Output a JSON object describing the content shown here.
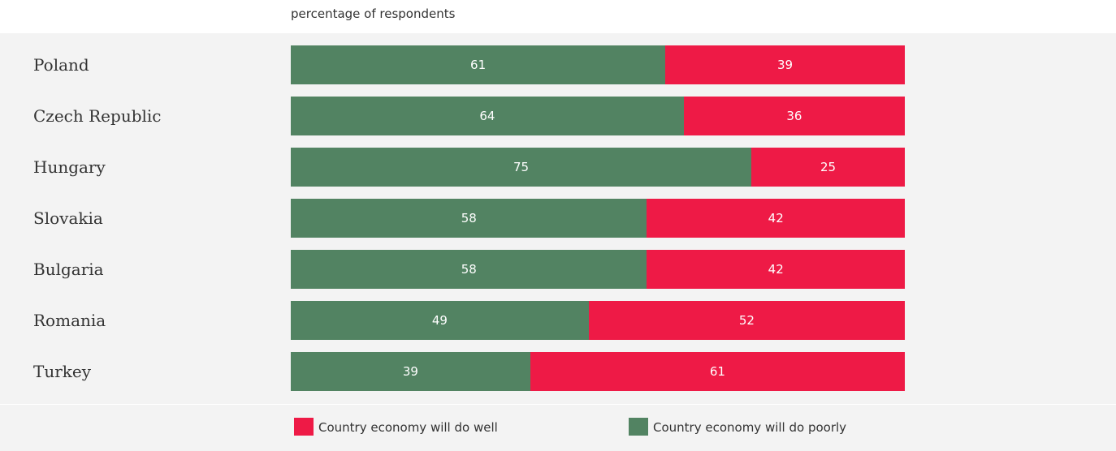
{
  "subtitle": "percentage of respondents",
  "colors": {
    "poorly": "#528362",
    "well": "#ee1a46",
    "panel": "#f3f3f3"
  },
  "chart_data": {
    "type": "bar",
    "orientation": "horizontal",
    "stacked": true,
    "subtitle": "percentage of respondents",
    "categories": [
      "Poland",
      "Czech Republic",
      "Hungary",
      "Slovakia",
      "Bulgaria",
      "Romania",
      "Turkey"
    ],
    "series": [
      {
        "name": "Country economy will do poorly",
        "values": [
          61,
          64,
          75,
          58,
          58,
          49,
          39
        ]
      },
      {
        "name": "Country economy will do well",
        "values": [
          39,
          36,
          25,
          42,
          42,
          52,
          61
        ]
      }
    ],
    "legend": [
      "Country economy will do well",
      "Country economy will do poorly"
    ],
    "legend_position": "bottom",
    "grid": false
  }
}
